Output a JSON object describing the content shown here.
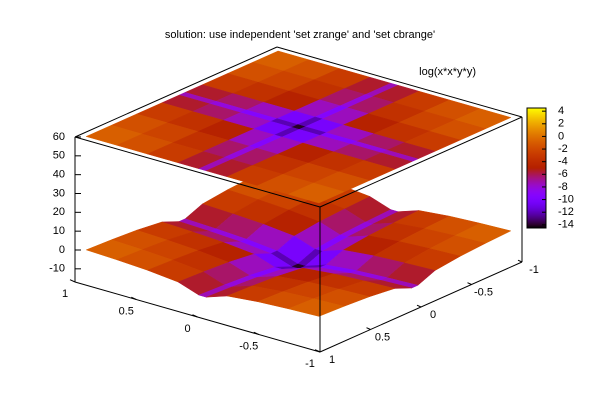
{
  "chart_data": {
    "type": "surface",
    "title": "solution: use independent 'set zrange' and 'set cbrange'",
    "key_label": "log(x*x*y*y)",
    "x": [
      -0.95,
      -0.7,
      -0.45,
      -0.2,
      -0.03,
      0.03,
      0.2,
      0.45,
      0.7,
      0.95
    ],
    "y": [
      -0.95,
      -0.7,
      -0.45,
      -0.2,
      -0.03,
      0.03,
      0.2,
      0.45,
      0.7,
      0.95
    ],
    "z": [
      [
        -0.206,
        -0.816,
        -1.7,
        -3.322,
        -7.116,
        -7.116,
        -3.322,
        -1.7,
        -0.816,
        -0.206
      ],
      [
        -0.816,
        -1.426,
        -2.31,
        -3.932,
        -7.726,
        -7.726,
        -3.932,
        -2.31,
        -1.426,
        -0.816
      ],
      [
        -1.7,
        -2.31,
        -3.194,
        -4.816,
        -8.61,
        -8.61,
        -4.816,
        -3.194,
        -2.31,
        -1.7
      ],
      [
        -3.322,
        -3.932,
        -4.816,
        -6.438,
        -10.232,
        -10.232,
        -6.438,
        -4.816,
        -3.932,
        -3.322
      ],
      [
        -7.116,
        -7.726,
        -8.61,
        -10.232,
        -14.026,
        -14.026,
        -10.232,
        -8.61,
        -7.726,
        -7.116
      ],
      [
        -7.116,
        -7.726,
        -8.61,
        -10.232,
        -14.026,
        -14.026,
        -10.232,
        -8.61,
        -7.726,
        -7.116
      ],
      [
        -3.322,
        -3.932,
        -4.816,
        -6.438,
        -10.232,
        -10.232,
        -6.438,
        -4.816,
        -3.932,
        -3.322
      ],
      [
        -1.7,
        -2.31,
        -3.194,
        -4.816,
        -8.61,
        -8.61,
        -4.816,
        -3.194,
        -2.31,
        -1.7
      ],
      [
        -0.816,
        -1.426,
        -2.31,
        -3.932,
        -7.726,
        -7.726,
        -3.932,
        -2.31,
        -1.426,
        -0.816
      ],
      [
        -0.206,
        -0.816,
        -1.7,
        -3.322,
        -7.116,
        -7.116,
        -3.322,
        -1.7,
        -0.816,
        -0.206
      ]
    ],
    "xlim": [
      -1,
      1
    ],
    "xticks": [
      -1,
      -0.5,
      0,
      0.5,
      1
    ],
    "ylim": [
      -1,
      1
    ],
    "yticks": [
      -1,
      -0.5,
      0,
      0.5,
      1
    ],
    "zlim": [
      -17,
      60
    ],
    "zticks": [
      -10,
      0,
      10,
      20,
      30,
      40,
      50,
      60
    ],
    "cblim": [
      -14.5,
      4.5
    ],
    "cbticks": [
      -14,
      -12,
      -10,
      -8,
      -6,
      -4,
      -2,
      0,
      2,
      4
    ]
  }
}
